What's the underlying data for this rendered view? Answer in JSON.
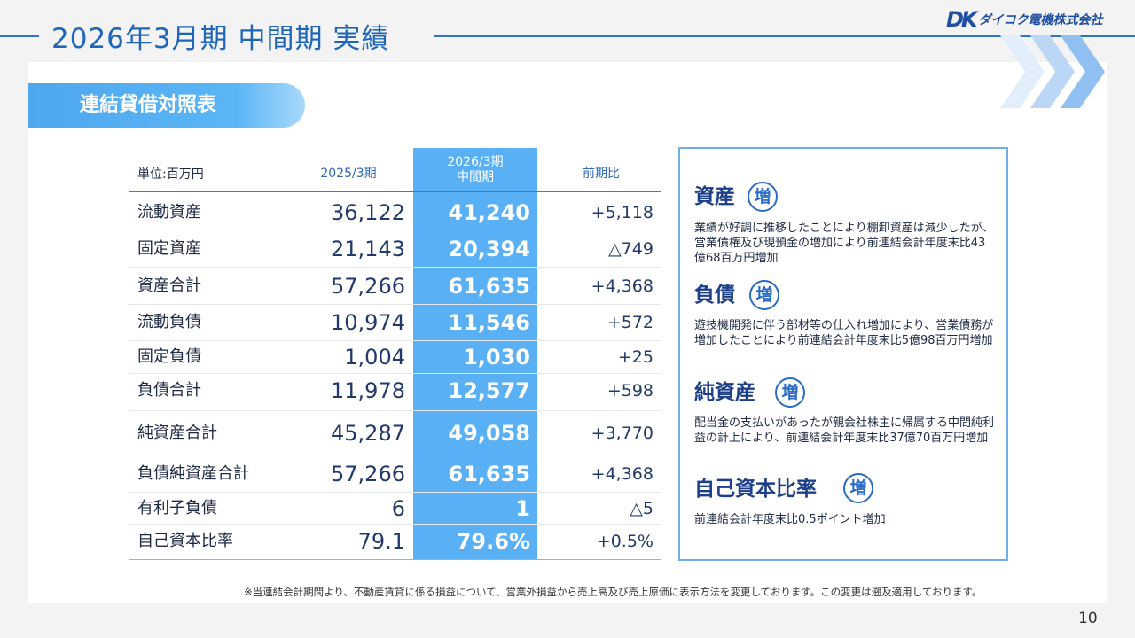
{
  "header": {
    "title": "2026年3月期  中間期 実績",
    "logo_mark": "DK",
    "logo_text": "ダイコク電機株式会社"
  },
  "section": {
    "label": "連結貸借対照表"
  },
  "table": {
    "unit_label": "単位:百万円",
    "col_2025": "2025/3期",
    "col_2026_line1": "2026/3期",
    "col_2026_line2": "中間期",
    "col_diff": "前期比",
    "rows": [
      {
        "label": "流動資産",
        "v2025": "36,122",
        "v2026": "41,240",
        "diff": "+5,118"
      },
      {
        "label": "固定資産",
        "v2025": "21,143",
        "v2026": "20,394",
        "diff": "△749"
      },
      {
        "label": "資産合計",
        "v2025": "57,266",
        "v2026": "61,635",
        "diff": "+4,368"
      },
      {
        "label": "流動負債",
        "v2025": "10,974",
        "v2026": "11,546",
        "diff": "+572"
      },
      {
        "label": "固定負債",
        "v2025": "1,004",
        "v2026": "1,030",
        "diff": "+25"
      },
      {
        "label": "負債合計",
        "v2025": "11,978",
        "v2026": "12,577",
        "diff": "+598"
      },
      {
        "label": "純資産合計",
        "v2025": "45,287",
        "v2026": "49,058",
        "diff": "+3,770"
      },
      {
        "label": "負債純資産合計",
        "v2025": "57,266",
        "v2026": "61,635",
        "diff": "+4,368"
      },
      {
        "label": "有利子負債",
        "v2025": "6",
        "v2026": "1",
        "diff": "△5"
      },
      {
        "label": "自己資本比率",
        "v2025": "79.1",
        "v2026": "79.6%",
        "diff": "+0.5%"
      }
    ]
  },
  "notes": [
    {
      "title": "資産",
      "badge": "増",
      "text": "業績が好調に推移したことにより棚卸資産は減少したが、営業債権及び現預金の増加により前連結会計年度末比43億68百万円増加"
    },
    {
      "title": "負債",
      "badge": "増",
      "text": "遊技機開発に伴う部材等の仕入れ増加により、営業債務が増加したことにより前連結会計年度末比5億98百万円増加"
    },
    {
      "title": "純資産",
      "badge": "増",
      "text": "配当金の支払いがあったが親会社株主に帰属する中間純利益の計上により、前連結会計年度末比37億70百万円増加"
    },
    {
      "title": "自己資本比率",
      "badge": "増",
      "text": "前連結会計年度末比0.5ポイント増加"
    }
  ],
  "footnote": "※当連結会計期間より、不動産賃貸に係る損益について、営業外損益から売上高及び売上原価に表示方法を変更しております。この変更は遡及適用しております。",
  "page_number": "10",
  "colors": {
    "accent": "#2e75c9",
    "highlight_column": "#59b0f4",
    "badge": "#2a6bc4"
  }
}
